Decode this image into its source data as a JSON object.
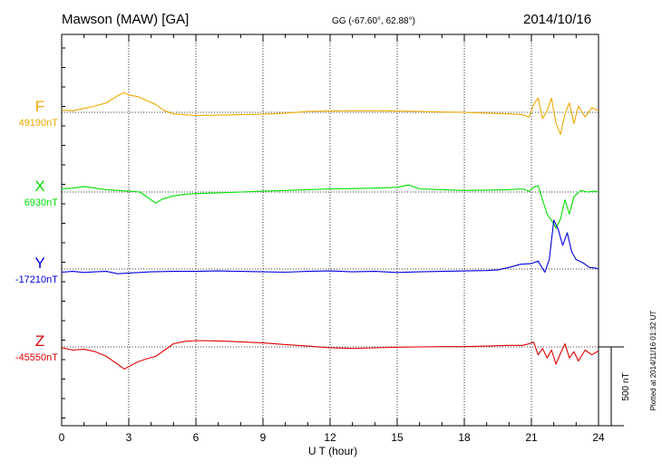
{
  "header": {
    "station": "Mawson (MAW)  [GA]",
    "coords": "GG (-67.60°,  62.88°)",
    "date": "2014/10/16"
  },
  "side_note": "Plotted at 2014/11/16 01:32 UT",
  "chart_data": {
    "type": "line",
    "xlabel": "U T (hour)",
    "xlim": [
      0,
      24
    ],
    "x_ticks": [
      0,
      3,
      6,
      9,
      12,
      15,
      18,
      21,
      24
    ],
    "scale_bar": {
      "label": "500 nT",
      "value_nT": 500
    },
    "grid": "dotted vertical at 3-hour intervals, dotted baseline per component",
    "series": [
      {
        "name": "F",
        "baseline_label": "49190nT",
        "baseline_nT": 49190,
        "color": "#f0a800",
        "x": [
          0,
          0.5,
          1,
          1.5,
          2,
          2.5,
          2.8,
          3,
          3.4,
          3.8,
          4.2,
          4.6,
          5,
          5.5,
          6,
          7,
          8,
          9,
          10,
          11,
          12,
          13,
          14,
          15,
          16,
          17,
          18,
          19,
          20,
          20.6,
          20.9,
          21.1,
          21.3,
          21.5,
          21.7,
          21.9,
          22.1,
          22.3,
          22.5,
          22.7,
          22.9,
          23.1,
          23.4,
          23.7,
          24
        ],
        "y": [
          49205,
          49200,
          49215,
          49230,
          49250,
          49295,
          49315,
          49300,
          49290,
          49265,
          49240,
          49200,
          49180,
          49175,
          49170,
          49172,
          49175,
          49178,
          49185,
          49195,
          49198,
          49200,
          49200,
          49198,
          49195,
          49192,
          49190,
          49185,
          49180,
          49175,
          49160,
          49240,
          49280,
          49150,
          49200,
          49280,
          49120,
          49050,
          49180,
          49250,
          49120,
          49230,
          49160,
          49220,
          49200
        ]
      },
      {
        "name": "X",
        "baseline_label": "6930nT",
        "baseline_nT": 6930,
        "color": "#00e000",
        "x": [
          0,
          0.5,
          1,
          1.5,
          2,
          2.5,
          3,
          3.5,
          4,
          4.2,
          4.5,
          5,
          5.5,
          6,
          7,
          8,
          9,
          10,
          11,
          12,
          13,
          14,
          15,
          15.5,
          16,
          17,
          18,
          19,
          20,
          20.6,
          20.9,
          21.1,
          21.3,
          21.5,
          21.7,
          21.9,
          22.1,
          22.3,
          22.5,
          22.7,
          22.9,
          23.2,
          23.5,
          23.8,
          24
        ],
        "y": [
          6950,
          6955,
          6965,
          6955,
          6945,
          6940,
          6935,
          6930,
          6880,
          6860,
          6885,
          6905,
          6915,
          6920,
          6925,
          6930,
          6935,
          6940,
          6945,
          6950,
          6952,
          6955,
          6960,
          6975,
          6950,
          6945,
          6940,
          6942,
          6945,
          6950,
          6935,
          6960,
          6970,
          6880,
          6790,
          6750,
          6700,
          6760,
          6880,
          6790,
          6900,
          6940,
          6930,
          6935,
          6930
        ]
      },
      {
        "name": "Y",
        "baseline_label": "-17210nT",
        "baseline_nT": -17210,
        "color": "#0000e0",
        "x": [
          0,
          0.5,
          1,
          1.5,
          2,
          2.5,
          3,
          4,
          5,
          6,
          7,
          8,
          9,
          10,
          11,
          12,
          13,
          14,
          15,
          16,
          17,
          18,
          19,
          19.5,
          20,
          20.5,
          21,
          21.3,
          21.6,
          21.8,
          22.0,
          22.2,
          22.4,
          22.6,
          22.8,
          23.0,
          23.3,
          23.6,
          23.9,
          24
        ],
        "y": [
          -17230,
          -17225,
          -17232,
          -17228,
          -17225,
          -17240,
          -17235,
          -17228,
          -17225,
          -17225,
          -17222,
          -17225,
          -17228,
          -17230,
          -17225,
          -17222,
          -17228,
          -17225,
          -17232,
          -17228,
          -17225,
          -17222,
          -17220,
          -17215,
          -17200,
          -17180,
          -17175,
          -17160,
          -17230,
          -17150,
          -16900,
          -16960,
          -17060,
          -16980,
          -17100,
          -17150,
          -17170,
          -17200,
          -17205,
          -17210
        ]
      },
      {
        "name": "Z",
        "baseline_label": "-45550nT",
        "baseline_nT": -45550,
        "color": "#e00000",
        "x": [
          0,
          0.5,
          1,
          1.5,
          2,
          2.5,
          2.8,
          3,
          3.4,
          3.8,
          4.2,
          4.6,
          5,
          5.5,
          6,
          7,
          8,
          9,
          10,
          11,
          12,
          13,
          14,
          15,
          16,
          17,
          18,
          19,
          20,
          20.6,
          20.9,
          21.1,
          21.3,
          21.5,
          21.7,
          21.9,
          22.1,
          22.3,
          22.5,
          22.7,
          22.9,
          23.1,
          23.4,
          23.7,
          24
        ],
        "y": [
          -45555,
          -45570,
          -45565,
          -45580,
          -45610,
          -45660,
          -45690,
          -45675,
          -45645,
          -45625,
          -45610,
          -45570,
          -45530,
          -45515,
          -45510,
          -45512,
          -45518,
          -45525,
          -45535,
          -45545,
          -45555,
          -45560,
          -45556,
          -45552,
          -45550,
          -45548,
          -45548,
          -45545,
          -45540,
          -45540,
          -45530,
          -45520,
          -45600,
          -45560,
          -45620,
          -45570,
          -45660,
          -45590,
          -45530,
          -45620,
          -45580,
          -45640,
          -45570,
          -45600,
          -45575
        ]
      }
    ]
  }
}
